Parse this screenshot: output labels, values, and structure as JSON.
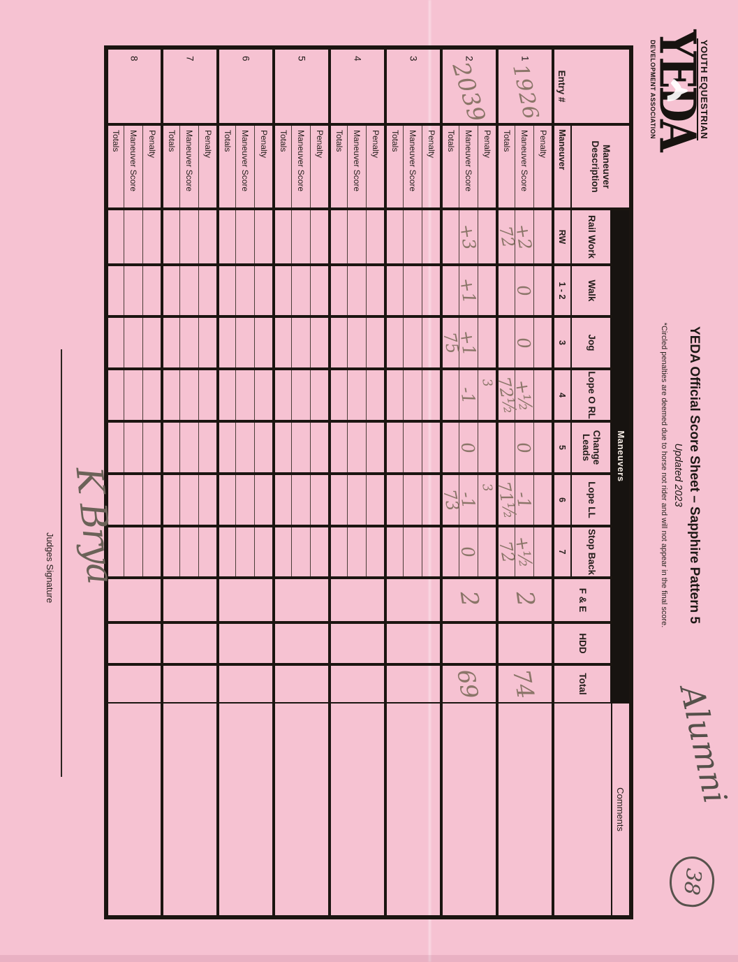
{
  "colors": {
    "paper": "#f6c2d2",
    "table_line": "#1b1511",
    "pencil": "#8a7568",
    "dark_ink": "#55504a"
  },
  "logo": {
    "top": "YOUTH EQUESTRIAN",
    "word": "YEDA",
    "bottom": "DEVELOPMENT ASSOCIATION"
  },
  "title": {
    "main": "YEDA Official Score Sheet – Sapphire Pattern 5",
    "updated": "Updated 2023",
    "note": "*Circled penalties are deemed due to horse not rider and will not appear in the final score."
  },
  "annotations": {
    "division": "Alumni",
    "page_number": "38",
    "judge_signature": "K Brya"
  },
  "signature_label": "Judges Signature",
  "table": {
    "banner": "Maneuvers",
    "entry_header": "Entry #",
    "md_header": "Maneuver Description",
    "md_sub": "Maneuver",
    "comments_header": "Comments",
    "fe_header": "F & E",
    "hdd_header": "HDD",
    "total_header": "Total",
    "maneuver_columns": [
      {
        "key": "rail_work",
        "label": "Rail Work",
        "sub": "RW"
      },
      {
        "key": "walk",
        "label": "Walk",
        "sub": "1 - 2"
      },
      {
        "key": "jog",
        "label": "Jog",
        "sub": "3"
      },
      {
        "key": "lope_orl",
        "label": "Lope O RL",
        "sub": "4"
      },
      {
        "key": "change_leads",
        "label": "Change Leads",
        "sub": "5"
      },
      {
        "key": "lope_ll",
        "label": "Lope LL",
        "sub": "6"
      },
      {
        "key": "stop_back",
        "label": "Stop Back",
        "sub": "7"
      }
    ],
    "row_labels": [
      "Penalty",
      "Maneuver Score",
      "Totals"
    ],
    "entries": [
      {
        "no": "1",
        "entry_number": "1926",
        "scores": {
          "rail_work": {
            "ms": "+2",
            "totals": "72"
          },
          "walk": {
            "ms": "0"
          },
          "jog": {
            "ms": "0"
          },
          "lope_orl": {
            "ms": "+½",
            "totals": "72½"
          },
          "change_leads": {
            "ms": "0"
          },
          "lope_ll": {
            "ms": "-1",
            "totals": "71½"
          },
          "stop_back": {
            "ms": "+½",
            "totals": "72"
          },
          "fe": "2",
          "total": "74"
        }
      },
      {
        "no": "2",
        "entry_number": "2039",
        "scores": {
          "rail_work": {
            "ms": "+3"
          },
          "walk": {
            "ms": "+1"
          },
          "jog": {
            "ms": "+1",
            "totals": "75"
          },
          "lope_orl": {
            "penalty": "3",
            "ms": "-1"
          },
          "change_leads": {
            "ms": "0"
          },
          "lope_ll": {
            "penalty": "3",
            "ms": "-1",
            "totals": "73"
          },
          "stop_back": {
            "ms": "0"
          },
          "fe": "2",
          "total": "69"
        }
      },
      {
        "no": "3"
      },
      {
        "no": "4"
      },
      {
        "no": "5"
      },
      {
        "no": "6"
      },
      {
        "no": "7"
      },
      {
        "no": "8"
      }
    ]
  }
}
